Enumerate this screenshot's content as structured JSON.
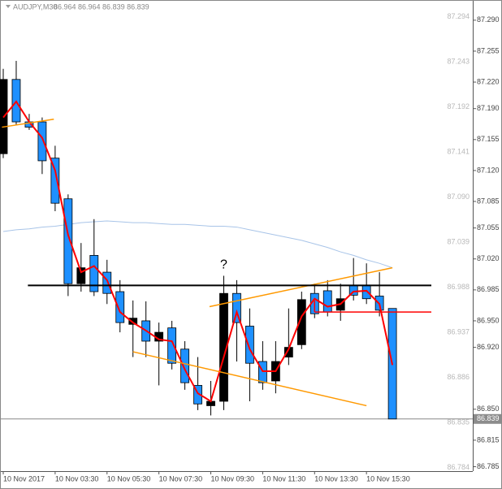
{
  "chart_data": {
    "type": "candlestick",
    "title": "AUDJPY,M30",
    "header_values": "86.964 86.964 86.839 86.839",
    "ylim": [
      86.78,
      87.311
    ],
    "yticks": [
      {
        "value": 87.29,
        "label": "87.290"
      },
      {
        "value": 87.255,
        "label": "87.255"
      },
      {
        "value": 87.22,
        "label": "87.220"
      },
      {
        "value": 87.19,
        "label": "87.190"
      },
      {
        "value": 87.155,
        "label": "87.155"
      },
      {
        "value": 87.12,
        "label": "87.120"
      },
      {
        "value": 87.085,
        "label": "87.085"
      },
      {
        "value": 87.055,
        "label": "87.055"
      },
      {
        "value": 87.02,
        "label": "87.020"
      },
      {
        "value": 86.985,
        "label": "86.985"
      },
      {
        "value": 86.95,
        "label": "86.950"
      },
      {
        "value": 86.92,
        "label": "86.920"
      },
      {
        "value": 86.85,
        "label": "86.850"
      },
      {
        "value": 86.815,
        "label": "86.815"
      },
      {
        "value": 86.785,
        "label": "86.785"
      }
    ],
    "grid_levels": [
      87.294,
      87.243,
      87.192,
      87.141,
      87.09,
      87.039,
      86.988,
      86.937,
      86.886,
      86.835,
      86.784
    ],
    "grid_level_labels": [
      "87.294",
      "87.243",
      "87.192",
      "87.141",
      "87.090",
      "87.039",
      "86.988",
      "86.937",
      "86.886",
      "86.835",
      "86.784"
    ],
    "xticks": [
      {
        "value": 0,
        "label": "10 Nov 2017"
      },
      {
        "value": 4,
        "label": "10 Nov 03:30"
      },
      {
        "value": 8,
        "label": "10 Nov 05:30"
      },
      {
        "value": 12,
        "label": "10 Nov 07:30"
      },
      {
        "value": 16,
        "label": "10 Nov 09:30"
      },
      {
        "value": 20,
        "label": "10 Nov 11:30"
      },
      {
        "value": 24,
        "label": "10 Nov 13:30"
      },
      {
        "value": 28,
        "label": "10 Nov 15:30"
      }
    ],
    "up_color": "#000000",
    "down_color": "#1e90ff",
    "open": [
      87.139,
      87.223,
      87.175,
      87.175,
      87.134,
      87.088,
      86.992,
      87.024,
      87.005,
      86.983,
      86.946,
      86.95,
      86.927,
      86.942,
      86.918,
      86.877,
      86.854,
      86.859,
      86.981,
      86.944,
      86.904,
      86.882,
      86.909,
      86.923,
      86.981,
      86.984,
      86.962,
      86.99,
      86.99,
      86.978,
      86.964
    ],
    "high": [
      87.235,
      87.244,
      87.184,
      87.18,
      87.148,
      87.093,
      87.038,
      87.065,
      87.019,
      86.996,
      86.973,
      86.972,
      86.948,
      86.95,
      86.927,
      86.909,
      86.882,
      87.001,
      86.996,
      86.964,
      86.927,
      86.927,
      86.964,
      86.983,
      86.992,
      86.996,
      86.992,
      87.021,
      87.015,
      87.005,
      86.964
    ],
    "low": [
      87.134,
      87.171,
      87.166,
      87.116,
      87.074,
      86.978,
      86.983,
      86.978,
      86.969,
      86.937,
      86.909,
      86.909,
      86.877,
      86.895,
      86.872,
      86.849,
      86.843,
      86.849,
      86.904,
      86.859,
      86.872,
      86.868,
      86.9,
      86.918,
      86.953,
      86.955,
      86.95,
      86.973,
      86.969,
      86.955,
      86.839
    ],
    "close": [
      87.223,
      87.175,
      87.169,
      87.131,
      87.083,
      86.992,
      87.01,
      86.983,
      86.981,
      86.948,
      86.953,
      86.927,
      86.937,
      86.902,
      86.88,
      86.856,
      86.859,
      86.981,
      86.948,
      86.902,
      86.88,
      86.904,
      86.92,
      86.974,
      86.958,
      86.96,
      86.975,
      86.979,
      86.975,
      86.962,
      86.839
    ],
    "ma_fast": {
      "color": "#ff0000",
      "values": [
        87.18,
        87.198,
        87.175,
        87.157,
        87.12,
        87.047,
        87.005,
        87.012,
        86.996,
        86.96,
        86.948,
        86.939,
        86.929,
        86.927,
        86.895,
        86.868,
        86.859,
        86.909,
        86.96,
        86.918,
        86.893,
        86.893,
        86.918,
        86.955,
        86.975,
        86.966,
        86.969,
        86.983,
        86.984,
        86.969,
        86.9
      ]
    },
    "ma_slow": {
      "color": "#a8c4e8",
      "values": [
        87.051,
        87.053,
        87.054,
        87.056,
        87.057,
        87.059,
        87.061,
        87.062,
        87.063,
        87.062,
        87.061,
        87.061,
        87.06,
        87.059,
        87.059,
        87.058,
        87.057,
        87.057,
        87.056,
        87.053,
        87.05,
        87.047,
        87.044,
        87.041,
        87.037,
        87.033,
        87.028,
        87.024,
        87.019,
        87.015,
        87.01
      ]
    },
    "lines": [
      {
        "color": "#ff9900",
        "start": [
          -0.1,
          87.169
        ],
        "end": [
          3.9,
          87.178
        ]
      },
      {
        "color": "#ff9900",
        "start": [
          10,
          86.915
        ],
        "end": [
          28,
          86.854
        ]
      },
      {
        "color": "#ff9900",
        "start": [
          15.9,
          86.966
        ],
        "end": [
          30,
          87.01
        ]
      },
      {
        "color": "#000000",
        "start": [
          1.9,
          86.99
        ],
        "end": [
          33,
          86.99
        ]
      },
      {
        "color": "#ff0000",
        "start": [
          24,
          86.96
        ],
        "end": [
          33,
          86.96
        ]
      },
      {
        "color": "#ff0000",
        "start": [
          24,
          86.973
        ],
        "end": [
          24,
          86.96
        ]
      }
    ],
    "annotation": {
      "text": "?",
      "x": 17,
      "y": 87.013
    },
    "current_price": {
      "value": 86.839,
      "label": "86.839"
    }
  }
}
